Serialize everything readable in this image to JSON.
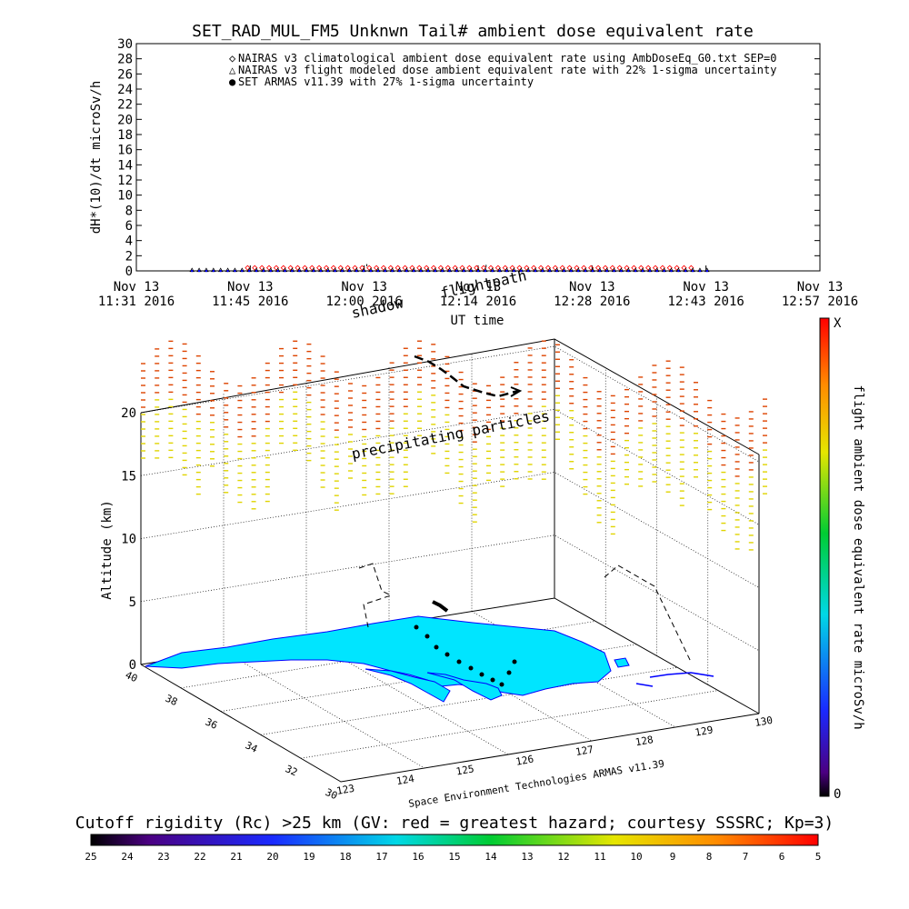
{
  "chart_data": [
    {
      "type": "scatter",
      "title": "SET_RAD_MUL_FM5 Unknwn Tail#  ambient dose equivalent rate",
      "ylabel": "dH*(10)/dt microSv/h",
      "xlabel": "UT time",
      "ylim": [
        0,
        30
      ],
      "yticks": [
        "0",
        "2",
        "4",
        "6",
        "8",
        "10",
        "12",
        "14",
        "16",
        "18",
        "20",
        "22",
        "24",
        "26",
        "28",
        "30"
      ],
      "xticks": [
        {
          "line1": "Nov 13",
          "line2": "11:31 2016"
        },
        {
          "line1": "Nov 13",
          "line2": "11:45 2016"
        },
        {
          "line1": "Nov 13",
          "line2": "12:00 2016"
        },
        {
          "line1": "Nov 13",
          "line2": "12:14 2016"
        },
        {
          "line1": "Nov 13",
          "line2": "12:28 2016"
        },
        {
          "line1": "Nov 13",
          "line2": "12:43 2016"
        },
        {
          "line1": "Nov 13",
          "line2": "12:57 2016"
        }
      ],
      "xrange_minutes": [
        0,
        86
      ],
      "legend": [
        {
          "marker": "◇",
          "color": "#ff0000",
          "label": "NAIRAS v3 climatological ambient dose equivalent rate using AmbDoseEq_G0.txt SEP=0"
        },
        {
          "marker": "△",
          "color": "#000000",
          "label": "NAIRAS v3 flight modeled dose ambient equivalent rate with 22% 1-sigma uncertainty"
        },
        {
          "marker": "●",
          "color": "#0000ff",
          "label": "SET ARMAS v11.39 with 27% 1-sigma uncertainty"
        }
      ],
      "series": [
        {
          "name": "NAIRAS v3 climatological ambient dose equivalent rate using AmbDoseEq_G0.txt SEP=0",
          "x_range_minutes": [
            14,
            70
          ],
          "values_approx": 0.4,
          "marker": "diamond",
          "color": "#ff0000"
        },
        {
          "name": "NAIRAS v3 flight modeled dose ambient equivalent rate with 22% 1-sigma uncertainty",
          "x_range_minutes": [
            7,
            72
          ],
          "values_approx": 0.1,
          "marker": "triangle",
          "color": "#000000"
        },
        {
          "name": "SET ARMAS v11.39 with 27% 1-sigma uncertainty",
          "x_range_minutes": [
            7,
            72
          ],
          "values_approx": 0.05,
          "marker": "dot",
          "color": "#0000ff"
        }
      ]
    },
    {
      "type": "surface",
      "zlabel": "Altitude (km)",
      "zticks": [
        "0",
        "5",
        "10",
        "15",
        "20"
      ],
      "zlim": [
        0,
        22
      ],
      "lat_ticks": [
        "40",
        "38",
        "36",
        "34",
        "32",
        "30"
      ],
      "lon_ticks": [
        "123",
        "124",
        "125",
        "126",
        "127",
        "128",
        "129",
        "130"
      ],
      "annotations": {
        "shadow": "shadow",
        "flightpath": "flightpath",
        "particles": "precipitating particles",
        "credit": "Space Environment Technologies ARMAS v11.39"
      },
      "colorbar_right": {
        "label": "flight ambient dose equivalent rate microSv/h",
        "top": "X",
        "bottom": "0"
      },
      "colorbar_bottom": {
        "label": "Cutoff rigidity (Rc) >25 km (GV: red = greatest hazard; courtesy SSSRC; Kp=3)",
        "ticks": [
          "25",
          "24",
          "23",
          "22",
          "21",
          "20",
          "19",
          "18",
          "17",
          "16",
          "15",
          "14",
          "13",
          "12",
          "11",
          "10",
          "9",
          "8",
          "7",
          "6",
          "5"
        ]
      },
      "colors": {
        "land": "#00e5ff",
        "coast": "#0000ff",
        "path": "#000000",
        "hi_particles": "#dd4400",
        "lo_particles": "#e0d400"
      }
    }
  ]
}
